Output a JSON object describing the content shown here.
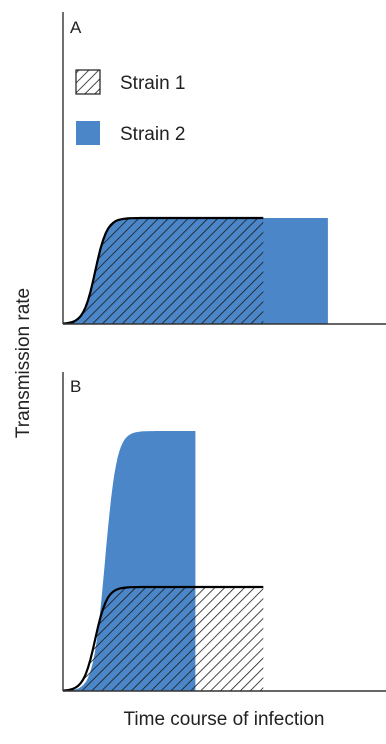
{
  "colors": {
    "strain2_fill": "#4a86c8",
    "strain1_hatch": "#1a1a1a",
    "axis": "#333333",
    "outline": "#000000"
  },
  "chart_data": {
    "type": "area",
    "title": "",
    "xlabel": "Time course of infection",
    "ylabel": "Transmission rate",
    "xlim": [
      0,
      1
    ],
    "ylim": [
      0,
      1
    ],
    "legend": {
      "placement": "top-left",
      "entries": [
        {
          "label": "Strain 1",
          "style": "hatched"
        },
        {
          "label": "Strain 2",
          "style": "solid-blue"
        }
      ]
    },
    "panels": [
      {
        "label": "A",
        "series": [
          {
            "name": "Strain 1",
            "plateau": 0.4,
            "rise_center": 0.1,
            "end": 0.62
          },
          {
            "name": "Strain 2",
            "plateau": 0.4,
            "rise_center": 0.1,
            "end": 0.82
          }
        ]
      },
      {
        "label": "B",
        "series": [
          {
            "name": "Strain 1",
            "plateau": 0.4,
            "rise_center": 0.1,
            "end": 0.62
          },
          {
            "name": "Strain 2",
            "plateau": 1.0,
            "rise_center": 0.13,
            "end": 0.41
          }
        ]
      }
    ]
  }
}
